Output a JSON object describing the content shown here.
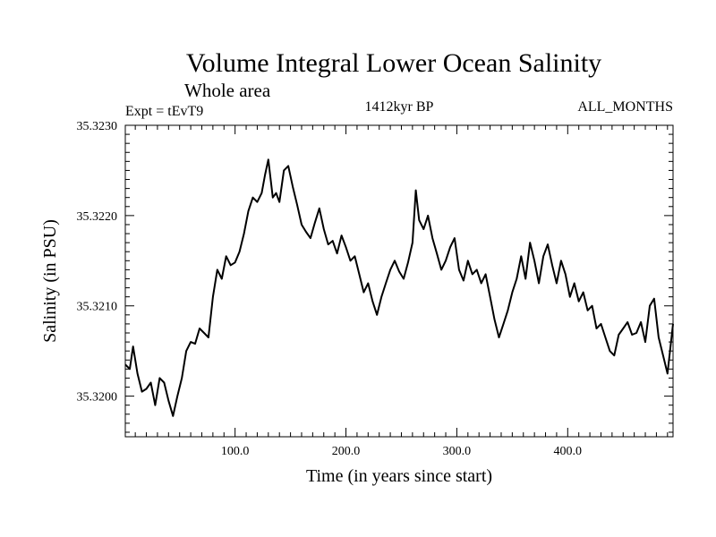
{
  "chart_data": {
    "type": "line",
    "title": "Volume Integral Lower Ocean Salinity",
    "subtitle": "Whole area",
    "annotations": {
      "left": "Expt = tEvT9",
      "center": "1412kyr BP",
      "right": "ALL_MONTHS"
    },
    "xlabel": "Time (in years since start)",
    "ylabel": "Salinity (in PSU)",
    "xlim": [
      1,
      495
    ],
    "ylim": [
      35.31955,
      35.323
    ],
    "xticks": [
      100,
      200,
      300,
      400
    ],
    "xtick_labels": [
      "100.0",
      "200.0",
      "300.0",
      "400.0"
    ],
    "yticks": [
      35.32,
      35.321,
      35.322,
      35.323
    ],
    "ytick_labels": [
      "35.3200",
      "35.3210",
      "35.3220",
      "35.3230"
    ],
    "line_color": "#000000",
    "series": [
      {
        "name": "Salinity",
        "x": [
          1,
          5,
          8,
          12,
          16,
          20,
          24,
          28,
          32,
          36,
          40,
          44,
          48,
          52,
          56,
          60,
          64,
          68,
          72,
          76,
          80,
          84,
          88,
          92,
          96,
          100,
          104,
          108,
          112,
          116,
          120,
          124,
          127,
          130,
          134,
          137,
          140,
          144,
          148,
          152,
          156,
          160,
          164,
          168,
          172,
          176,
          180,
          184,
          188,
          192,
          196,
          200,
          204,
          208,
          212,
          216,
          220,
          224,
          228,
          232,
          236,
          240,
          244,
          248,
          252,
          256,
          260,
          263,
          266,
          270,
          274,
          278,
          282,
          286,
          290,
          294,
          298,
          302,
          306,
          310,
          314,
          318,
          322,
          326,
          330,
          334,
          338,
          342,
          346,
          350,
          354,
          358,
          362,
          366,
          370,
          374,
          378,
          382,
          386,
          390,
          394,
          398,
          402,
          406,
          410,
          414,
          418,
          422,
          426,
          430,
          434,
          438,
          442,
          446,
          450,
          454,
          458,
          462,
          466,
          470,
          474,
          478,
          482,
          486,
          490,
          495
        ],
        "values": [
          35.32035,
          35.3203,
          35.32055,
          35.32025,
          35.32005,
          35.32008,
          35.32015,
          35.3199,
          35.3202,
          35.32015,
          35.31995,
          35.31978,
          35.32,
          35.3202,
          35.3205,
          35.3206,
          35.32058,
          35.32075,
          35.3207,
          35.32065,
          35.3211,
          35.3214,
          35.3213,
          35.32155,
          35.32145,
          35.32148,
          35.3216,
          35.3218,
          35.32205,
          35.3222,
          35.32215,
          35.32225,
          35.32245,
          35.32262,
          35.3222,
          35.32225,
          35.32215,
          35.3225,
          35.32255,
          35.32232,
          35.32212,
          35.3219,
          35.32182,
          35.32175,
          35.32192,
          35.32208,
          35.32185,
          35.32168,
          35.32172,
          35.32158,
          35.32178,
          35.32165,
          35.3215,
          35.32155,
          35.32135,
          35.32115,
          35.32125,
          35.32105,
          35.3209,
          35.3211,
          35.32125,
          35.3214,
          35.3215,
          35.32138,
          35.3213,
          35.32148,
          35.3217,
          35.32228,
          35.32195,
          35.32185,
          35.322,
          35.32175,
          35.32158,
          35.3214,
          35.3215,
          35.32165,
          35.32175,
          35.3214,
          35.32128,
          35.3215,
          35.32135,
          35.3214,
          35.32125,
          35.32135,
          35.3211,
          35.32085,
          35.32065,
          35.3208,
          35.32095,
          35.32115,
          35.3213,
          35.32155,
          35.3213,
          35.3217,
          35.3215,
          35.32125,
          35.32155,
          35.32168,
          35.32145,
          35.32125,
          35.3215,
          35.32135,
          35.3211,
          35.32125,
          35.32105,
          35.32115,
          35.32095,
          35.321,
          35.32075,
          35.3208,
          35.32065,
          35.3205,
          35.32045,
          35.32068,
          35.32075,
          35.32082,
          35.32068,
          35.3207,
          35.32082,
          35.3206,
          35.321,
          35.32108,
          35.32065,
          35.32045,
          35.32025,
          35.3208
        ]
      }
    ]
  }
}
